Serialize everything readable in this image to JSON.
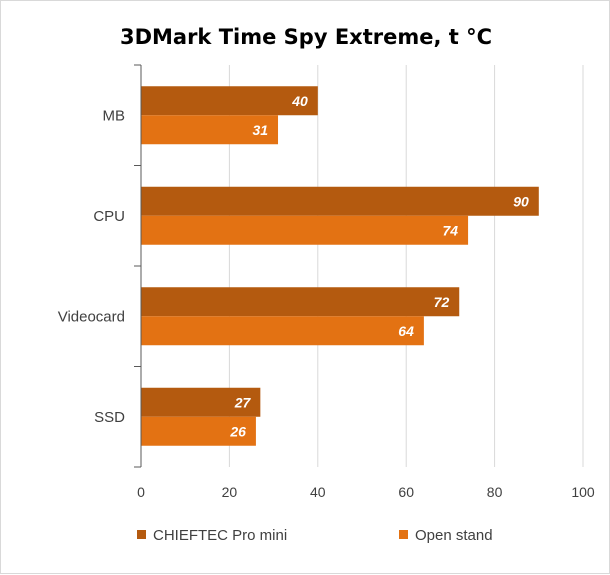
{
  "chart_data": {
    "type": "bar",
    "orientation": "horizontal",
    "title": "3DMark Time Spy Extreme, t °C",
    "categories": [
      "MB",
      "CPU",
      "Videocard",
      "SSD"
    ],
    "series": [
      {
        "name": "CHIEFTEC Pro mini",
        "values": [
          40,
          90,
          72,
          27
        ],
        "color": "#b45a0f"
      },
      {
        "name": "Open stand",
        "values": [
          31,
          74,
          64,
          26
        ],
        "color": "#e37213"
      }
    ],
    "xlim": [
      0,
      100
    ],
    "xticks": [
      0,
      20,
      40,
      60,
      80,
      100
    ],
    "grid": true,
    "legend": "bottom",
    "data_labels": true
  }
}
